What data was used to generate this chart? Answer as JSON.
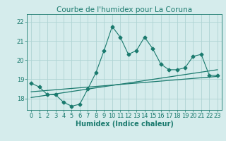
{
  "title": "Courbe de l'humidex pour La Coruna",
  "xlabel": "Humidex (Indice chaleur)",
  "x": [
    0,
    1,
    2,
    3,
    4,
    5,
    6,
    7,
    8,
    9,
    10,
    11,
    12,
    13,
    14,
    15,
    16,
    17,
    18,
    19,
    20,
    21,
    22,
    23
  ],
  "y": [
    18.8,
    18.6,
    18.2,
    18.2,
    17.8,
    17.6,
    17.7,
    18.5,
    19.35,
    20.5,
    21.75,
    21.2,
    20.3,
    20.5,
    21.2,
    20.6,
    19.8,
    19.5,
    19.5,
    19.6,
    20.2,
    20.3,
    19.2,
    19.2
  ],
  "trend1_x": [
    0,
    23
  ],
  "trend1_y": [
    18.35,
    19.15
  ],
  "trend2_x": [
    0,
    23
  ],
  "trend2_y": [
    18.05,
    19.5
  ],
  "line_color": "#1a7a6e",
  "bg_color": "#d5ecec",
  "grid_color": "#afd4d4",
  "ylim": [
    17.4,
    22.4
  ],
  "xlim": [
    -0.5,
    23.5
  ],
  "yticks": [
    18,
    19,
    20,
    21,
    22
  ],
  "xticks": [
    0,
    1,
    2,
    3,
    4,
    5,
    6,
    7,
    8,
    9,
    10,
    11,
    12,
    13,
    14,
    15,
    16,
    17,
    18,
    19,
    20,
    21,
    22,
    23
  ],
  "title_fontsize": 7.5,
  "label_fontsize": 7,
  "tick_fontsize": 6
}
